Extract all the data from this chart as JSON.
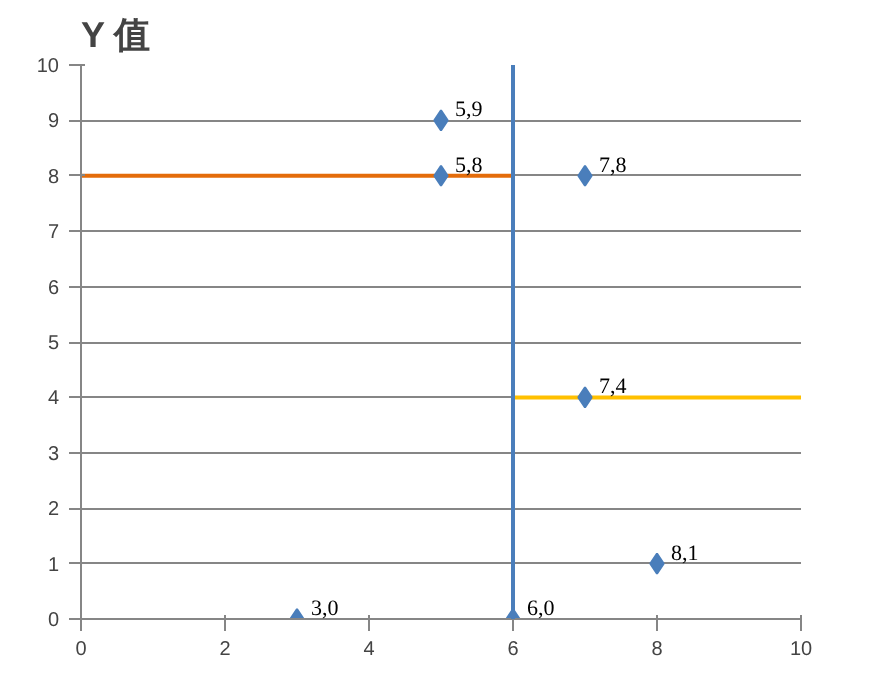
{
  "chart_data": {
    "type": "scatter",
    "title": "Y 值",
    "series": [
      {
        "type": "line",
        "color": "#e46c0a",
        "x": [
          0,
          6
        ],
        "values": [
          8,
          8
        ]
      },
      {
        "type": "line",
        "color": "#ffc000",
        "x": [
          6,
          10
        ],
        "values": [
          4,
          4
        ]
      },
      {
        "color": "#4a7ebb",
        "marker": "diamond",
        "x": [
          5,
          5,
          7,
          7,
          8,
          3,
          6
        ],
        "values": [
          9,
          8,
          8,
          4,
          1,
          0,
          0
        ]
      }
    ],
    "ref_lines": [
      {
        "axis": "x",
        "value": 6,
        "color": "#4a7ebb"
      }
    ],
    "annotations": [
      {
        "text": "5,9",
        "x": 5,
        "y": 9
      },
      {
        "text": "5,8",
        "x": 5,
        "y": 8
      },
      {
        "text": "7,8",
        "x": 7,
        "y": 8
      },
      {
        "text": "7,4",
        "x": 7,
        "y": 4
      },
      {
        "text": "8,1",
        "x": 8,
        "y": 1
      },
      {
        "text": "3,0",
        "x": 3,
        "y": 0
      },
      {
        "text": "6,0",
        "x": 6,
        "y": 0
      }
    ],
    "xlim": [
      0,
      10
    ],
    "xticks": [
      0,
      2,
      4,
      6,
      8,
      10
    ],
    "ylim": [
      0,
      10
    ],
    "yticks": [
      0,
      1,
      2,
      3,
      4,
      5,
      6,
      7,
      8,
      9,
      10
    ],
    "grid": "y"
  }
}
